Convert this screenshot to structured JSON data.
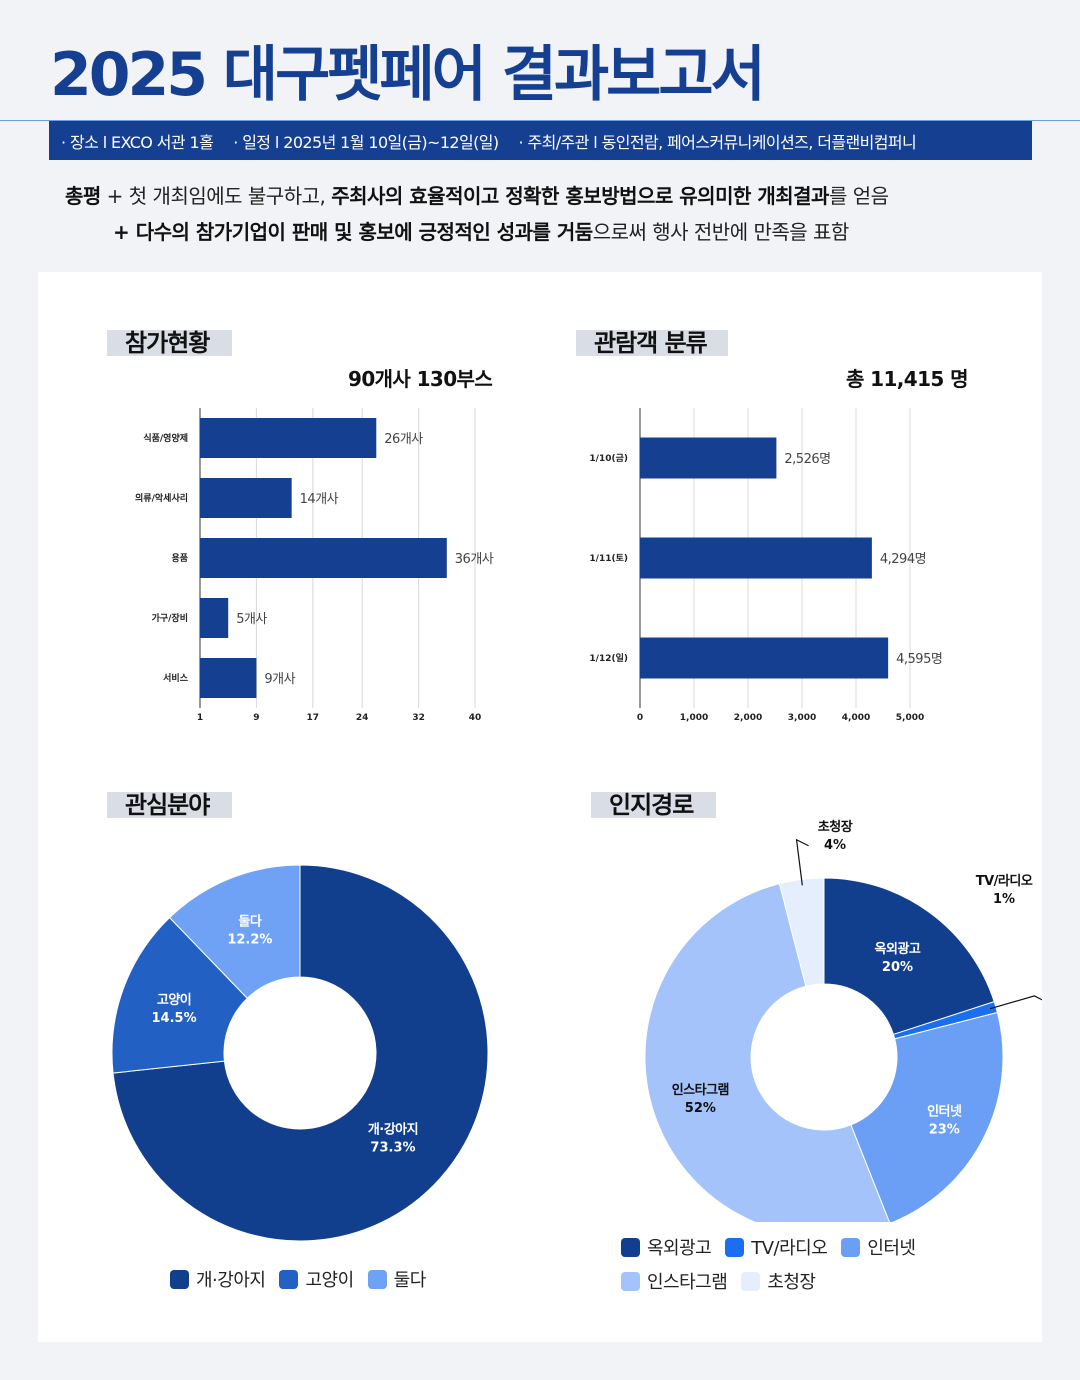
{
  "header": {
    "title": "2025 대구펫페어 결과보고서",
    "info": [
      "· 장소 l EXCO 서관 1홀",
      "· 일정 l 2025년 1월 10일(금)~12일(일)",
      "· 주최/주관 l 동인전람, 페어스커뮤니케이션즈, 더플랜비컴퍼니"
    ]
  },
  "summary": {
    "line1": [
      {
        "text": "총평",
        "bold": true
      },
      {
        "text": " + 첫 개최임에도 불구하고, ",
        "bold": false
      },
      {
        "text": "주최사의 효율적이고 정확한 홍보방법으로 유의미한 개최결과",
        "bold": true
      },
      {
        "text": "를 얻음",
        "bold": false
      }
    ],
    "line2": [
      {
        "text": "+ ",
        "bold": true
      },
      {
        "text": "다수의 참가기업이 판매 및 홍보에 긍정적인 성과를 거둠",
        "bold": true
      },
      {
        "text": "으로써 행사 전반에 만족을 표함",
        "bold": false
      }
    ]
  },
  "sections": {
    "participation": {
      "title": "참가현황",
      "subtitle": "90개사 130부스"
    },
    "visitors": {
      "title": "관람객 분류",
      "subtitle": "총 11,415 명"
    },
    "interest": {
      "title": "관심분야"
    },
    "channel": {
      "title": "인지경로"
    }
  },
  "chart_data": [
    {
      "type": "bar",
      "orientation": "horizontal",
      "categories": [
        "식품/영양제",
        "의류/악세사리",
        "용품",
        "가구/장비",
        "서비스"
      ],
      "values": [
        26,
        14,
        36,
        5,
        9
      ],
      "data_labels": [
        "26개사",
        "14개사",
        "36개사",
        "5개사",
        "9개사"
      ],
      "xlim": [
        1,
        40
      ],
      "xticks": [
        1,
        9,
        17,
        24,
        32,
        40
      ],
      "grid": true,
      "color": "#153f91"
    },
    {
      "type": "bar",
      "orientation": "horizontal",
      "categories": [
        "1/10(금)",
        "1/11(토)",
        "1/12(일)"
      ],
      "values": [
        2526,
        4294,
        4595
      ],
      "data_labels": [
        "2,526명",
        "4,294명",
        "4,595명"
      ],
      "xlim": [
        0,
        5000
      ],
      "xticks": [
        0,
        1000,
        2000,
        3000,
        4000,
        5000
      ],
      "xtick_labels": [
        "0",
        "1,000",
        "2,000",
        "3,000",
        "4,000",
        "5,000"
      ],
      "grid": true,
      "color": "#153f91"
    },
    {
      "type": "pie",
      "donut": true,
      "labels": [
        "개·강아지",
        "고양이",
        "둘다"
      ],
      "values": [
        73.3,
        14.5,
        12.2
      ],
      "value_labels": [
        "73.3%",
        "14.5%",
        "12.2%"
      ],
      "colors": [
        "#123f8d",
        "#2360c4",
        "#6fa2f5"
      ],
      "legend_position": "bottom"
    },
    {
      "type": "pie",
      "donut": true,
      "labels": [
        "옥외광고",
        "TV/라디오",
        "인터넷",
        "인스타그램",
        "초청장"
      ],
      "values": [
        20,
        1,
        23,
        52,
        4
      ],
      "value_labels": [
        "20%",
        "1%",
        "23%",
        "52%",
        "4%"
      ],
      "colors": [
        "#123f8d",
        "#1a6ff0",
        "#6b9ff5",
        "#a3c3fa",
        "#e4eefc"
      ],
      "legend_position": "bottom"
    }
  ]
}
